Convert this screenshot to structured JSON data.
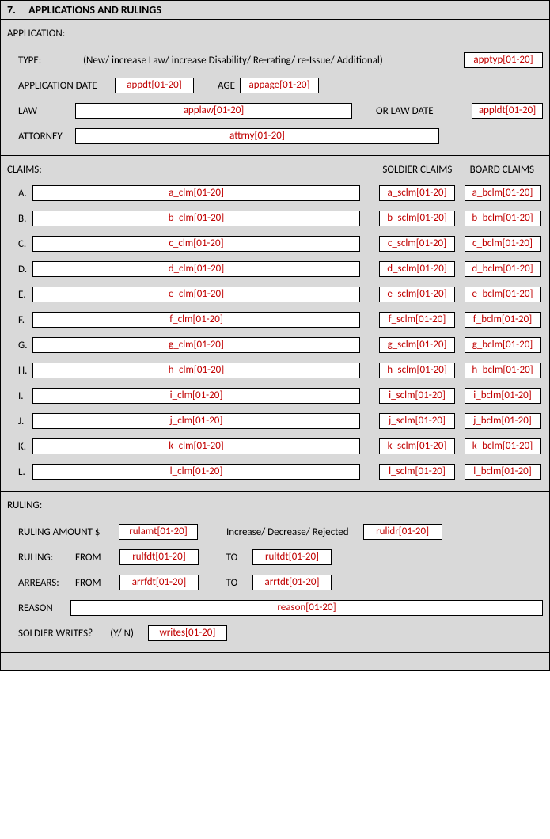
{
  "header": {
    "num": "7.",
    "title": "APPLICATIONS AND RULINGS"
  },
  "application": {
    "title": "APPLICATION:",
    "type_label": "TYPE:",
    "type_desc": "(New/ increase Law/ increase Disability/ Re-rating/ re-Issue/ Additional)",
    "apptyp": "apptyp[01-20]",
    "appdate_label": "APPLICATION DATE",
    "appdt": "appdt[01-20]",
    "age_label": "AGE",
    "appage": "appage[01-20]",
    "law_label": "LAW",
    "applaw": "applaw[01-20]",
    "orlawdate_label": "OR LAW DATE",
    "appldt": "appldt[01-20]",
    "attorney_label": "ATTORNEY",
    "attrny": "attrny[01-20]"
  },
  "claims": {
    "title": "CLAIMS:",
    "soldier_header": "SOLDIER CLAIMS",
    "board_header": "BOARD CLAIMS",
    "rows": [
      {
        "letter": "A.",
        "clm": "a_clm[01-20]",
        "sclm": "a_sclm[01-20]",
        "bclm": "a_bclm[01-20]"
      },
      {
        "letter": "B.",
        "clm": "b_clm[01-20]",
        "sclm": "b_sclm[01-20]",
        "bclm": "b_bclm[01-20]"
      },
      {
        "letter": "C.",
        "clm": "c_clm[01-20]",
        "sclm": "c_sclm[01-20]",
        "bclm": "c_bclm[01-20]"
      },
      {
        "letter": "D.",
        "clm": "d_clm[01-20]",
        "sclm": "d_sclm[01-20]",
        "bclm": "d_bclm[01-20]"
      },
      {
        "letter": "E.",
        "clm": "e_clm[01-20]",
        "sclm": "e_sclm[01-20]",
        "bclm": "e_bclm[01-20]"
      },
      {
        "letter": "F.",
        "clm": "f_clm[01-20]",
        "sclm": "f_sclm[01-20]",
        "bclm": "f_bclm[01-20]"
      },
      {
        "letter": "G.",
        "clm": "g_clm[01-20]",
        "sclm": "g_sclm[01-20]",
        "bclm": "g_bclm[01-20]"
      },
      {
        "letter": "H.",
        "clm": "h_clm[01-20]",
        "sclm": "h_sclm[01-20]",
        "bclm": "h_bclm[01-20]"
      },
      {
        "letter": "I.",
        "clm": "i_clm[01-20]",
        "sclm": "i_sclm[01-20]",
        "bclm": "i_bclm[01-20]"
      },
      {
        "letter": "J.",
        "clm": "j_clm[01-20]",
        "sclm": "j_sclm[01-20]",
        "bclm": "j_bclm[01-20]"
      },
      {
        "letter": "K.",
        "clm": "k_clm[01-20]",
        "sclm": "k_sclm[01-20]",
        "bclm": "k_bclm[01-20]"
      },
      {
        "letter": "L.",
        "clm": "l_clm[01-20]",
        "sclm": "l_sclm[01-20]",
        "bclm": "l_bclm[01-20]"
      }
    ]
  },
  "ruling": {
    "title": "RULING:",
    "amount_label": "RULING AMOUNT   $",
    "rulamt": "rulamt[01-20]",
    "idr_label": "Increase/ Decrease/ Rejected",
    "rulidr": "rulidr[01-20]",
    "ruling_label": "RULING:",
    "from_label": "FROM",
    "to_label": "TO",
    "rulfdt": "rulfdt[01-20]",
    "rultdt": "rultdt[01-20]",
    "arrears_label": "ARREARS:",
    "arrfdt": "arrfdt[01-20]",
    "arrtdt": "arrtdt[01-20]",
    "reason_label": "REASON",
    "reason": "reason[01-20]",
    "writes_label": "SOLDIER WRITES?",
    "yn_label": "(Y/ N)",
    "writes": "writes[01-20]"
  }
}
